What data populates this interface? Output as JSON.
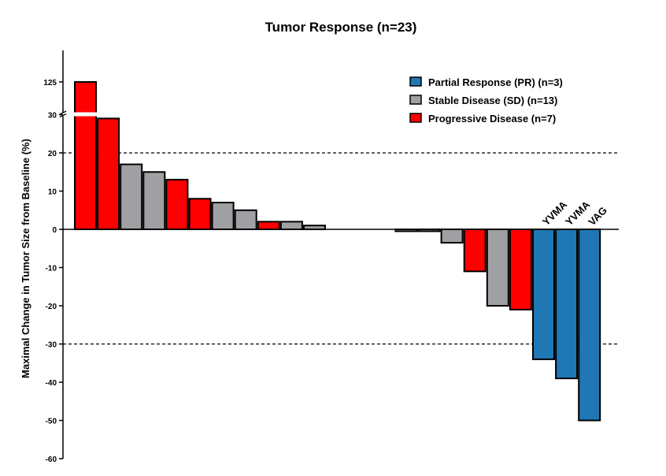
{
  "chart_data": {
    "type": "bar",
    "title": "Tumor Response (n=23)",
    "xlabel": "",
    "ylabel": "Maximal Change in Tumor Size from Baseline (%)",
    "ylim": [
      -60,
      30
    ],
    "y_ticks": [
      -60,
      -50,
      -40,
      -30,
      -20,
      -10,
      0,
      10,
      20,
      30
    ],
    "y_axis_break": {
      "upper_tick": 125,
      "upper_tick_label": "125"
    },
    "reference_lines": [
      20,
      -30
    ],
    "grid": false,
    "legend_position": "top-right",
    "colors": {
      "PR": "#1f77b4",
      "SD": "#a0a0a4",
      "PD": "#ff0000",
      "border": "#000000"
    },
    "legend": [
      {
        "key": "PR",
        "label": "Partial Response (PR) (n=3)"
      },
      {
        "key": "SD",
        "label": "Stable Disease (SD) (n=13)"
      },
      {
        "key": "PD",
        "label": "Progressive Disease (n=7)"
      }
    ],
    "bars": [
      {
        "value": 125,
        "category": "PD",
        "label": ""
      },
      {
        "value": 29,
        "category": "PD",
        "label": ""
      },
      {
        "value": 17,
        "category": "SD",
        "label": ""
      },
      {
        "value": 15,
        "category": "SD",
        "label": ""
      },
      {
        "value": 13,
        "category": "PD",
        "label": ""
      },
      {
        "value": 8,
        "category": "PD",
        "label": ""
      },
      {
        "value": 7,
        "category": "SD",
        "label": ""
      },
      {
        "value": 5,
        "category": "SD",
        "label": ""
      },
      {
        "value": 2,
        "category": "PD",
        "label": ""
      },
      {
        "value": 2,
        "category": "SD",
        "label": ""
      },
      {
        "value": 1,
        "category": "SD",
        "label": ""
      },
      {
        "value": 0,
        "category": "SD",
        "label": ""
      },
      {
        "value": 0,
        "category": "SD",
        "label": ""
      },
      {
        "value": 0,
        "category": "SD",
        "label": ""
      },
      {
        "value": -0.5,
        "category": "SD",
        "label": ""
      },
      {
        "value": -0.5,
        "category": "SD",
        "label": ""
      },
      {
        "value": -3.5,
        "category": "SD",
        "label": ""
      },
      {
        "value": -11,
        "category": "PD",
        "label": ""
      },
      {
        "value": -20,
        "category": "SD",
        "label": ""
      },
      {
        "value": -21,
        "category": "PD",
        "label": ""
      },
      {
        "value": -34,
        "category": "PR",
        "label": "YVMA"
      },
      {
        "value": -39,
        "category": "PR",
        "label": "YVMA"
      },
      {
        "value": -50,
        "category": "PR",
        "label": "VAG"
      }
    ]
  }
}
